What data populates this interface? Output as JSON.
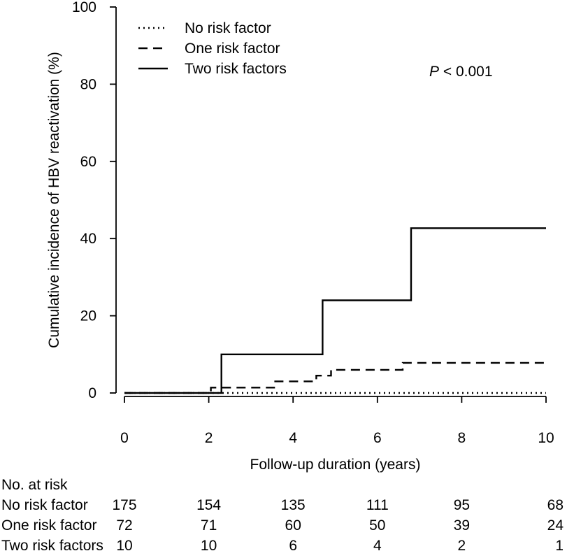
{
  "chart_data": {
    "type": "line",
    "step": true,
    "xlabel": "Follow-up duration (years)",
    "ylabel": "Cumulative incidence of HBV reactivation (%)",
    "xlim": [
      0,
      10
    ],
    "ylim": [
      0,
      100
    ],
    "x_ticks": [
      0,
      2,
      4,
      6,
      8,
      10
    ],
    "y_ticks": [
      0,
      20,
      40,
      60,
      80,
      100
    ],
    "grid": false,
    "legend_position": "top-left",
    "annotation": {
      "italic": "P",
      "rest": " < 0.001"
    },
    "series": [
      {
        "name": "No risk factor",
        "style": "dotted",
        "points": [
          [
            0,
            0
          ],
          [
            10,
            0
          ]
        ]
      },
      {
        "name": "One risk factor",
        "style": "dashed",
        "points": [
          [
            0,
            0
          ],
          [
            2.05,
            0
          ],
          [
            2.05,
            1.4
          ],
          [
            3.55,
            1.4
          ],
          [
            3.55,
            3.0
          ],
          [
            4.55,
            3.0
          ],
          [
            4.55,
            4.5
          ],
          [
            4.9,
            4.5
          ],
          [
            4.9,
            6.0
          ],
          [
            6.6,
            6.0
          ],
          [
            6.6,
            7.8
          ],
          [
            10,
            7.8
          ]
        ]
      },
      {
        "name": "Two risk factors",
        "style": "solid",
        "points": [
          [
            0,
            0
          ],
          [
            2.3,
            0
          ],
          [
            2.3,
            10
          ],
          [
            4.7,
            10
          ],
          [
            4.7,
            24
          ],
          [
            6.8,
            24
          ],
          [
            6.8,
            42.7
          ],
          [
            10,
            42.7
          ]
        ]
      }
    ],
    "risk_table": {
      "title": "No. at risk",
      "times": [
        0,
        2,
        4,
        6,
        8,
        10
      ],
      "rows": [
        {
          "label": "No risk factor",
          "values": [
            "175",
            "154",
            "135",
            "111",
            "95",
            "68"
          ]
        },
        {
          "label": "One risk factor",
          "values": [
            "72",
            "71",
            "60",
            "50",
            "39",
            "24"
          ]
        },
        {
          "label": "Two risk factors",
          "values": [
            "10",
            "10",
            "6",
            "4",
            "2",
            "1"
          ]
        }
      ]
    }
  }
}
